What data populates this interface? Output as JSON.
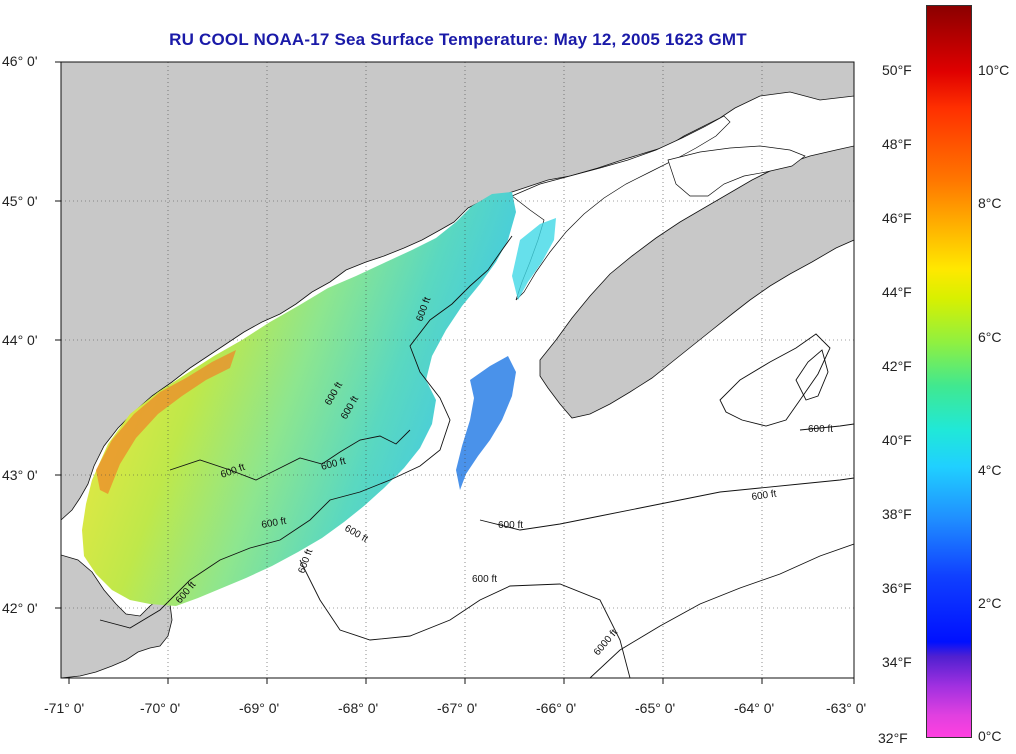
{
  "title": "RU COOL  NOAA-17  Sea Surface Temperature:  May 12, 2005 1623 GMT",
  "latitude_labels": [
    "46° 0'",
    "45° 0'",
    "44° 0'",
    "43° 0'",
    "42° 0'"
  ],
  "longitude_labels": [
    "-71° 0'",
    "-70° 0'",
    "-69° 0'",
    "-68° 0'",
    "-67° 0'",
    "-66° 0'",
    "-65° 0'",
    "-64° 0'",
    "-63° 0'"
  ],
  "contour_labels": [
    "600 ft",
    "600 ft",
    "600 ft",
    "600 ft",
    "600 ft",
    "600 ft",
    "600 ft",
    "600 ft",
    "600 ft",
    "600 ft",
    "600 ft",
    "600 ft",
    "600 ft",
    "6000 ft"
  ],
  "colorbar": {
    "fahrenheit_labels": [
      "50°F",
      "48°F",
      "46°F",
      "44°F",
      "42°F",
      "40°F",
      "38°F",
      "36°F",
      "34°F",
      "32°F"
    ],
    "celsius_labels": [
      "10°C",
      "8°C",
      "6°C",
      "4°C",
      "2°C",
      "0°C"
    ],
    "range_celsius": [
      0,
      11.3
    ]
  },
  "colors": {
    "title": "#1a1aa8",
    "land": "#c8c8c8",
    "water": "#ffffff",
    "sst_cold": "#1e6fe0",
    "sst_cyan": "#30d8e8",
    "sst_green": "#9ee86a",
    "sst_yellow": "#f0e840",
    "sst_warm": "#ee8a2a"
  }
}
